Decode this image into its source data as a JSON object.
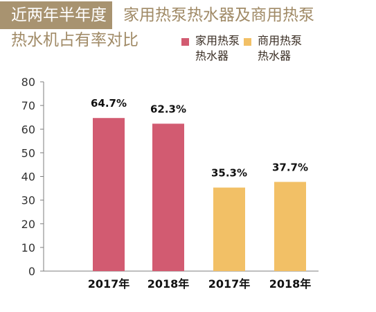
{
  "title": {
    "highlight": "近两年半年度",
    "rest_line1": "家用热泵热水器及商用热泵",
    "rest_line2": "热水机占有率对比"
  },
  "legend": [
    {
      "line1": "家用热泵",
      "line2": "热水器",
      "color": "#d25b71"
    },
    {
      "line1": "商用热泵",
      "line2": "热水器",
      "color": "#f2c066"
    }
  ],
  "chart_data": {
    "type": "bar",
    "categories": [
      "2017年",
      "2018年",
      "2017年",
      "2018年"
    ],
    "values": [
      64.7,
      62.3,
      35.3,
      37.7
    ],
    "value_labels": [
      "64.7%",
      "62.3%",
      "35.3%",
      "37.7%"
    ],
    "bar_colors": [
      "#d25b71",
      "#d25b71",
      "#f2c066",
      "#f2c066"
    ],
    "ylim": [
      0,
      80
    ],
    "yticks": [
      "0",
      "10",
      "20",
      "30",
      "40",
      "50",
      "60",
      "70",
      "80"
    ],
    "grid": false
  }
}
